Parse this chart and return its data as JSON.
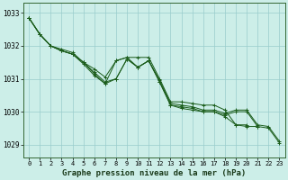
{
  "title": "Graphe pression niveau de la mer (hPa)",
  "background_color": "#cceee8",
  "plot_bg_color": "#cceee8",
  "grid_color": "#99cccc",
  "line_color": "#1a5c1a",
  "xlim": [
    -0.5,
    23.5
  ],
  "ylim": [
    1028.6,
    1033.3
  ],
  "yticks": [
    1029,
    1030,
    1031,
    1032,
    1033
  ],
  "xticks": [
    0,
    1,
    2,
    3,
    4,
    5,
    6,
    7,
    8,
    9,
    10,
    11,
    12,
    13,
    14,
    15,
    16,
    17,
    18,
    19,
    20,
    21,
    22,
    23
  ],
  "series": [
    [
      1032.85,
      1032.35,
      1032.0,
      1031.9,
      1031.8,
      1031.5,
      1031.3,
      1031.05,
      1031.55,
      1031.65,
      1031.65,
      1031.65,
      1031.0,
      1030.3,
      1030.3,
      1030.25,
      1030.2,
      1030.2,
      1030.05,
      1029.6,
      1029.6,
      null,
      null,
      null
    ],
    [
      1032.85,
      1032.35,
      1032.0,
      1031.85,
      1031.75,
      1031.45,
      1031.1,
      1030.85,
      1031.0,
      1031.6,
      1031.35,
      1031.55,
      1030.9,
      1030.2,
      1030.1,
      1030.05,
      1030.0,
      1030.0,
      1029.85,
      1029.6,
      1029.55,
      1029.55,
      null,
      null
    ],
    [
      1032.85,
      1032.35,
      1032.0,
      1031.85,
      1031.75,
      1031.5,
      1031.2,
      1030.9,
      1031.0,
      1031.6,
      1031.35,
      1031.55,
      1030.95,
      1030.25,
      1030.2,
      1030.15,
      1030.05,
      1030.05,
      1029.95,
      1030.05,
      1030.05,
      1029.6,
      1029.55,
      1029.1
    ],
    [
      1032.85,
      1032.35,
      1032.0,
      1031.85,
      1031.75,
      1031.5,
      1031.15,
      1030.85,
      1031.55,
      1031.65,
      1031.35,
      1031.55,
      1030.9,
      1030.2,
      1030.15,
      1030.1,
      1030.0,
      1030.0,
      1029.9,
      1030.0,
      1030.0,
      1029.55,
      1029.5,
      1029.05
    ]
  ]
}
